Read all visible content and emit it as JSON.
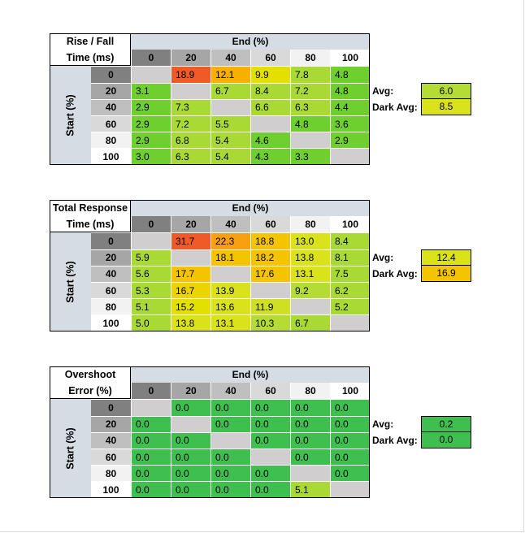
{
  "colors": {
    "band": "#d5dce4",
    "col_header_backgrounds": [
      "#808080",
      "#a6a6a6",
      "#bfbfbf",
      "#d9d9d9",
      "#f2f2f2",
      "#ffffff"
    ],
    "diagonal": "#d0cece"
  },
  "tables": [
    {
      "title_line1": "Rise / Fall",
      "title_line2": "Time (ms)",
      "end_label": "End (%)",
      "start_label": "Start (%)",
      "columns": [
        "0",
        "20",
        "40",
        "60",
        "80",
        "100"
      ],
      "rows": [
        "0",
        "20",
        "40",
        "60",
        "80",
        "100"
      ],
      "values": [
        [
          "",
          "18.9",
          "12.1",
          "9.9",
          "7.8",
          "4.8"
        ],
        [
          "3.1",
          "",
          "6.7",
          "8.4",
          "7.2",
          "4.8"
        ],
        [
          "2.9",
          "7.3",
          "",
          "6.6",
          "6.3",
          "4.4"
        ],
        [
          "2.9",
          "7.2",
          "5.5",
          "",
          "4.8",
          "3.6"
        ],
        [
          "2.9",
          "6.8",
          "5.4",
          "4.6",
          "",
          "2.9"
        ],
        [
          "3.0",
          "6.3",
          "5.4",
          "4.3",
          "3.3",
          ""
        ]
      ],
      "colors": [
        [
          "#d0cece",
          "#f05a28",
          "#f8b000",
          "#e3e000",
          "#a9d934",
          "#6fcf2e"
        ],
        [
          "#6fcf2e",
          "#d0cece",
          "#a9d934",
          "#a9d934",
          "#a9d934",
          "#6fcf2e"
        ],
        [
          "#6fcf2e",
          "#a9d934",
          "#d0cece",
          "#a9d934",
          "#a9d934",
          "#6fcf2e"
        ],
        [
          "#6fcf2e",
          "#a9d934",
          "#a9d934",
          "#d0cece",
          "#6fcf2e",
          "#6fcf2e"
        ],
        [
          "#6fcf2e",
          "#a9d934",
          "#a9d934",
          "#6fcf2e",
          "#d0cece",
          "#6fcf2e"
        ],
        [
          "#6fcf2e",
          "#a9d934",
          "#a9d934",
          "#6fcf2e",
          "#6fcf2e",
          "#d0cece"
        ]
      ],
      "avg_label": "Avg:",
      "avg_value": "6.0",
      "avg_color": "#b5dc34",
      "dark_avg_label": "Dark Avg:",
      "dark_avg_value": "8.5",
      "dark_avg_color": "#d9e21a"
    },
    {
      "title_line1": "Total Response",
      "title_line2": "Time (ms)",
      "end_label": "End (%)",
      "start_label": "Start (%)",
      "columns": [
        "0",
        "20",
        "40",
        "60",
        "80",
        "100"
      ],
      "rows": [
        "0",
        "20",
        "40",
        "60",
        "80",
        "100"
      ],
      "values": [
        [
          "",
          "31.7",
          "22.3",
          "18.8",
          "13.0",
          "8.4"
        ],
        [
          "5.9",
          "",
          "18.1",
          "18.2",
          "13.8",
          "8.1"
        ],
        [
          "5.6",
          "17.7",
          "",
          "17.6",
          "13.1",
          "7.5"
        ],
        [
          "5.3",
          "16.7",
          "13.9",
          "",
          "9.2",
          "6.2"
        ],
        [
          "5.1",
          "15.2",
          "13.6",
          "11.9",
          "",
          "5.2"
        ],
        [
          "5.0",
          "13.8",
          "13.1",
          "10.3",
          "6.7",
          ""
        ]
      ],
      "colors": [
        [
          "#d0cece",
          "#f05a28",
          "#f8a010",
          "#f5c400",
          "#d9e21a",
          "#a9d934"
        ],
        [
          "#a9d934",
          "#d0cece",
          "#f5c400",
          "#f5c400",
          "#d9e21a",
          "#a9d934"
        ],
        [
          "#a9d934",
          "#f5c400",
          "#d0cece",
          "#f5c400",
          "#d9e21a",
          "#a9d934"
        ],
        [
          "#a9d934",
          "#ecd400",
          "#d9e21a",
          "#d0cece",
          "#b5dc34",
          "#a9d934"
        ],
        [
          "#a9d934",
          "#e3e000",
          "#d9e21a",
          "#cfe022",
          "#d0cece",
          "#a9d934"
        ],
        [
          "#a9d934",
          "#d9e21a",
          "#d9e21a",
          "#b5dc34",
          "#a9d934",
          "#d0cece"
        ]
      ],
      "avg_label": "Avg:",
      "avg_value": "12.4",
      "avg_color": "#d9e21a",
      "dark_avg_label": "Dark Avg:",
      "dark_avg_value": "16.9",
      "dark_avg_color": "#f5c400"
    },
    {
      "title_line1": "Overshoot",
      "title_line2": "Error (%)",
      "end_label": "End (%)",
      "start_label": "Start (%)",
      "columns": [
        "0",
        "20",
        "40",
        "60",
        "80",
        "100"
      ],
      "rows": [
        "0",
        "20",
        "40",
        "60",
        "80",
        "100"
      ],
      "values": [
        [
          "",
          "0.0",
          "0.0",
          "0.0",
          "0.0",
          "0.0"
        ],
        [
          "0.0",
          "",
          "0.0",
          "0.0",
          "0.0",
          "0.0"
        ],
        [
          "0.0",
          "0.0",
          "",
          "0.0",
          "0.0",
          "0.0"
        ],
        [
          "0.0",
          "0.0",
          "0.0",
          "",
          "0.0",
          "0.0"
        ],
        [
          "0.0",
          "0.0",
          "0.0",
          "0.0",
          "",
          "0.0"
        ],
        [
          "0.0",
          "0.0",
          "0.0",
          "0.0",
          "5.1",
          ""
        ]
      ],
      "colors": [
        [
          "#d0cece",
          "#3fbf4f",
          "#3fbf4f",
          "#3fbf4f",
          "#3fbf4f",
          "#3fbf4f"
        ],
        [
          "#3fbf4f",
          "#d0cece",
          "#3fbf4f",
          "#3fbf4f",
          "#3fbf4f",
          "#3fbf4f"
        ],
        [
          "#3fbf4f",
          "#3fbf4f",
          "#d0cece",
          "#3fbf4f",
          "#3fbf4f",
          "#3fbf4f"
        ],
        [
          "#3fbf4f",
          "#3fbf4f",
          "#3fbf4f",
          "#d0cece",
          "#3fbf4f",
          "#3fbf4f"
        ],
        [
          "#3fbf4f",
          "#3fbf4f",
          "#3fbf4f",
          "#3fbf4f",
          "#d0cece",
          "#3fbf4f"
        ],
        [
          "#3fbf4f",
          "#3fbf4f",
          "#3fbf4f",
          "#3fbf4f",
          "#a9d934",
          "#d0cece"
        ]
      ],
      "avg_label": "Avg:",
      "avg_value": "0.2",
      "avg_color": "#3fbf4f",
      "dark_avg_label": "Dark Avg:",
      "dark_avg_value": "0.0",
      "dark_avg_color": "#3fbf4f"
    }
  ],
  "chart_data": [
    {
      "type": "heatmap",
      "title": "Rise / Fall Time (ms)",
      "xlabel": "End (%)",
      "ylabel": "Start (%)",
      "x": [
        "0",
        "20",
        "40",
        "60",
        "80",
        "100"
      ],
      "y": [
        "0",
        "20",
        "40",
        "60",
        "80",
        "100"
      ],
      "values": [
        [
          null,
          18.9,
          12.1,
          9.9,
          7.8,
          4.8
        ],
        [
          3.1,
          null,
          6.7,
          8.4,
          7.2,
          4.8
        ],
        [
          2.9,
          7.3,
          null,
          6.6,
          6.3,
          4.4
        ],
        [
          2.9,
          7.2,
          5.5,
          null,
          4.8,
          3.6
        ],
        [
          2.9,
          6.8,
          5.4,
          4.6,
          null,
          2.9
        ],
        [
          3.0,
          6.3,
          5.4,
          4.3,
          3.3,
          null
        ]
      ],
      "avg": 6.0,
      "dark_avg": 8.5
    },
    {
      "type": "heatmap",
      "title": "Total Response Time (ms)",
      "xlabel": "End (%)",
      "ylabel": "Start (%)",
      "x": [
        "0",
        "20",
        "40",
        "60",
        "80",
        "100"
      ],
      "y": [
        "0",
        "20",
        "40",
        "60",
        "80",
        "100"
      ],
      "values": [
        [
          null,
          31.7,
          22.3,
          18.8,
          13.0,
          8.4
        ],
        [
          5.9,
          null,
          18.1,
          18.2,
          13.8,
          8.1
        ],
        [
          5.6,
          17.7,
          null,
          17.6,
          13.1,
          7.5
        ],
        [
          5.3,
          16.7,
          13.9,
          null,
          9.2,
          6.2
        ],
        [
          5.1,
          15.2,
          13.6,
          11.9,
          null,
          5.2
        ],
        [
          5.0,
          13.8,
          13.1,
          10.3,
          6.7,
          null
        ]
      ],
      "avg": 12.4,
      "dark_avg": 16.9
    },
    {
      "type": "heatmap",
      "title": "Overshoot Error (%)",
      "xlabel": "End (%)",
      "ylabel": "Start (%)",
      "x": [
        "0",
        "20",
        "40",
        "60",
        "80",
        "100"
      ],
      "y": [
        "0",
        "20",
        "40",
        "60",
        "80",
        "100"
      ],
      "values": [
        [
          null,
          0.0,
          0.0,
          0.0,
          0.0,
          0.0
        ],
        [
          0.0,
          null,
          0.0,
          0.0,
          0.0,
          0.0
        ],
        [
          0.0,
          0.0,
          null,
          0.0,
          0.0,
          0.0
        ],
        [
          0.0,
          0.0,
          0.0,
          null,
          0.0,
          0.0
        ],
        [
          0.0,
          0.0,
          0.0,
          0.0,
          null,
          0.0
        ],
        [
          0.0,
          0.0,
          0.0,
          0.0,
          5.1,
          null
        ]
      ],
      "avg": 0.2,
      "dark_avg": 0.0
    }
  ]
}
